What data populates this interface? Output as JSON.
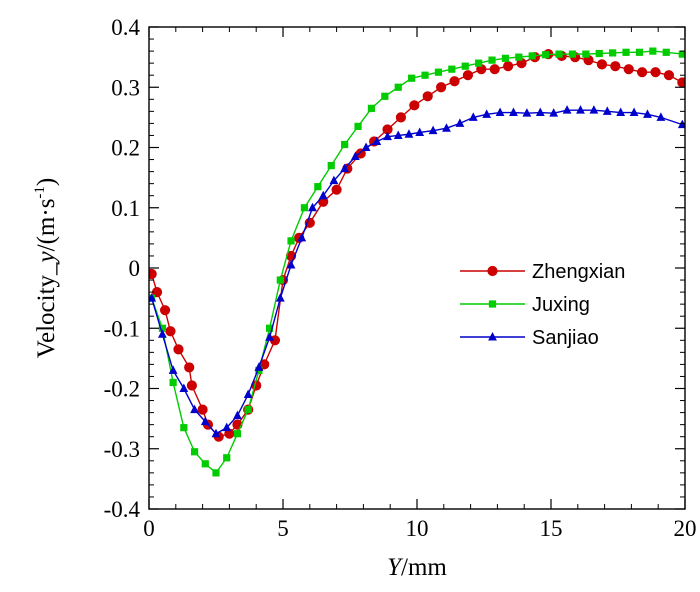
{
  "chart_data": {
    "type": "line",
    "title": "",
    "xlabel_italic": "Y",
    "xlabel_rest": "/mm",
    "ylabel_prefix": "Velocity_",
    "ylabel_italic": "y",
    "ylabel_unit": "/(m·s",
    "ylabel_exp": "-1",
    "ylabel_close": ")",
    "xlim": [
      0,
      20
    ],
    "ylim": [
      -0.4,
      0.4
    ],
    "xticks": [
      0,
      5,
      10,
      15,
      20
    ],
    "xtick_labels": [
      "0",
      "5",
      "10",
      "15",
      "20"
    ],
    "yticks": [
      0.4,
      0.3,
      0.2,
      0.1,
      0,
      -0.1,
      -0.2,
      -0.3,
      -0.4
    ],
    "ytick_labels": [
      "0.4",
      "0.3",
      "0.2",
      "0.1",
      "0",
      "-0.1",
      "-0.2",
      "-0.3",
      "-0.4"
    ],
    "grid": false,
    "legend_position": "center-right",
    "series": [
      {
        "name": "Zhengxian",
        "color": "#cc0000",
        "marker": "circle",
        "points": [
          [
            0.1,
            -0.01
          ],
          [
            0.3,
            -0.04
          ],
          [
            0.6,
            -0.07
          ],
          [
            0.8,
            -0.105
          ],
          [
            1.1,
            -0.135
          ],
          [
            1.5,
            -0.165
          ],
          [
            1.6,
            -0.195
          ],
          [
            2.0,
            -0.235
          ],
          [
            2.2,
            -0.26
          ],
          [
            2.6,
            -0.28
          ],
          [
            3.0,
            -0.275
          ],
          [
            3.3,
            -0.26
          ],
          [
            3.7,
            -0.235
          ],
          [
            4.0,
            -0.195
          ],
          [
            4.3,
            -0.16
          ],
          [
            4.7,
            -0.12
          ],
          [
            5.0,
            -0.02
          ],
          [
            5.3,
            0.02
          ],
          [
            5.6,
            0.05
          ],
          [
            6.0,
            0.075
          ],
          [
            6.5,
            0.11
          ],
          [
            7.0,
            0.13
          ],
          [
            7.4,
            0.165
          ],
          [
            7.9,
            0.19
          ],
          [
            8.4,
            0.21
          ],
          [
            8.9,
            0.23
          ],
          [
            9.4,
            0.25
          ],
          [
            9.9,
            0.27
          ],
          [
            10.4,
            0.285
          ],
          [
            10.9,
            0.3
          ],
          [
            11.4,
            0.31
          ],
          [
            11.9,
            0.32
          ],
          [
            12.4,
            0.33
          ],
          [
            12.9,
            0.33
          ],
          [
            13.4,
            0.335
          ],
          [
            13.9,
            0.34
          ],
          [
            14.4,
            0.35
          ],
          [
            14.9,
            0.355
          ],
          [
            15.4,
            0.352
          ],
          [
            15.9,
            0.35
          ],
          [
            16.4,
            0.345
          ],
          [
            16.9,
            0.338
          ],
          [
            17.4,
            0.335
          ],
          [
            17.9,
            0.33
          ],
          [
            18.4,
            0.325
          ],
          [
            18.9,
            0.325
          ],
          [
            19.4,
            0.32
          ],
          [
            19.9,
            0.308
          ]
        ]
      },
      {
        "name": "Juxing",
        "color": "#00cc00",
        "marker": "square",
        "points": [
          [
            0.1,
            -0.05
          ],
          [
            0.5,
            -0.1
          ],
          [
            0.9,
            -0.19
          ],
          [
            1.3,
            -0.265
          ],
          [
            1.7,
            -0.305
          ],
          [
            2.1,
            -0.325
          ],
          [
            2.5,
            -0.34
          ],
          [
            2.9,
            -0.315
          ],
          [
            3.3,
            -0.275
          ],
          [
            3.7,
            -0.235
          ],
          [
            4.1,
            -0.17
          ],
          [
            4.5,
            -0.1
          ],
          [
            4.9,
            -0.02
          ],
          [
            5.3,
            0.045
          ],
          [
            5.8,
            0.1
          ],
          [
            6.3,
            0.135
          ],
          [
            6.8,
            0.17
          ],
          [
            7.3,
            0.205
          ],
          [
            7.8,
            0.235
          ],
          [
            8.3,
            0.265
          ],
          [
            8.8,
            0.285
          ],
          [
            9.3,
            0.3
          ],
          [
            9.8,
            0.315
          ],
          [
            10.3,
            0.32
          ],
          [
            10.8,
            0.325
          ],
          [
            11.3,
            0.33
          ],
          [
            11.8,
            0.335
          ],
          [
            12.3,
            0.34
          ],
          [
            12.8,
            0.345
          ],
          [
            13.3,
            0.348
          ],
          [
            13.8,
            0.35
          ],
          [
            14.3,
            0.352
          ],
          [
            14.8,
            0.354
          ],
          [
            15.3,
            0.355
          ],
          [
            15.8,
            0.355
          ],
          [
            16.3,
            0.355
          ],
          [
            16.8,
            0.356
          ],
          [
            17.3,
            0.357
          ],
          [
            17.8,
            0.358
          ],
          [
            18.3,
            0.358
          ],
          [
            18.8,
            0.36
          ],
          [
            19.3,
            0.358
          ],
          [
            19.9,
            0.355
          ]
        ]
      },
      {
        "name": "Sanjiao",
        "color": "#0000cc",
        "marker": "triangle",
        "points": [
          [
            0.1,
            -0.05
          ],
          [
            0.5,
            -0.11
          ],
          [
            0.9,
            -0.17
          ],
          [
            1.3,
            -0.2
          ],
          [
            1.7,
            -0.235
          ],
          [
            2.1,
            -0.255
          ],
          [
            2.5,
            -0.275
          ],
          [
            2.9,
            -0.265
          ],
          [
            3.3,
            -0.245
          ],
          [
            3.7,
            -0.21
          ],
          [
            4.1,
            -0.165
          ],
          [
            4.5,
            -0.115
          ],
          [
            4.9,
            -0.05
          ],
          [
            5.3,
            0.005
          ],
          [
            5.7,
            0.05
          ],
          [
            6.1,
            0.1
          ],
          [
            6.5,
            0.12
          ],
          [
            6.9,
            0.145
          ],
          [
            7.3,
            0.165
          ],
          [
            7.7,
            0.185
          ],
          [
            8.1,
            0.2
          ],
          [
            8.5,
            0.21
          ],
          [
            8.9,
            0.218
          ],
          [
            9.3,
            0.22
          ],
          [
            9.7,
            0.222
          ],
          [
            10.1,
            0.225
          ],
          [
            10.6,
            0.228
          ],
          [
            11.1,
            0.232
          ],
          [
            11.6,
            0.24
          ],
          [
            12.1,
            0.25
          ],
          [
            12.6,
            0.255
          ],
          [
            13.1,
            0.258
          ],
          [
            13.6,
            0.258
          ],
          [
            14.1,
            0.257
          ],
          [
            14.6,
            0.258
          ],
          [
            15.1,
            0.257
          ],
          [
            15.6,
            0.262
          ],
          [
            16.1,
            0.262
          ],
          [
            16.6,
            0.262
          ],
          [
            17.1,
            0.26
          ],
          [
            17.6,
            0.258
          ],
          [
            18.1,
            0.258
          ],
          [
            18.6,
            0.255
          ],
          [
            19.1,
            0.25
          ],
          [
            19.9,
            0.238
          ]
        ]
      }
    ]
  }
}
